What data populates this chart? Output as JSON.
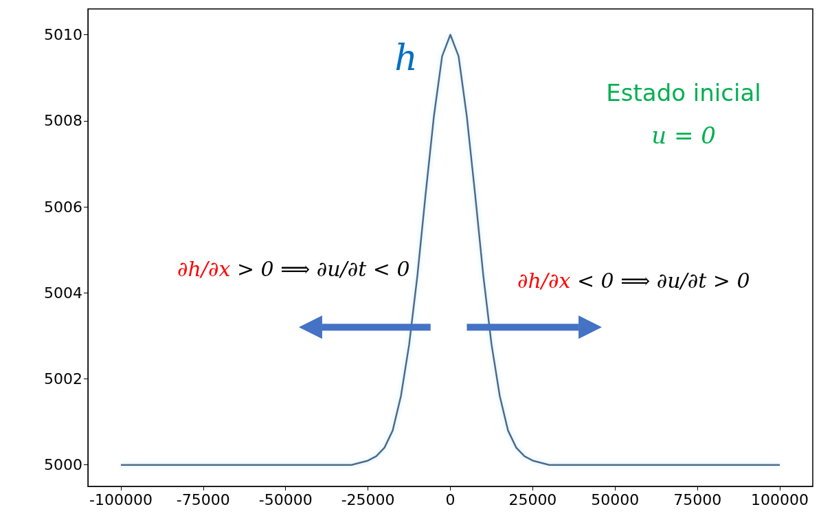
{
  "chart_data": {
    "type": "line",
    "x": [
      -100000,
      -75000,
      -50000,
      -30000,
      -25000,
      -22500,
      -20000,
      -17500,
      -15000,
      -12500,
      -10000,
      -7500,
      -5000,
      -2500,
      0,
      2500,
      5000,
      7500,
      10000,
      12500,
      15000,
      17500,
      20000,
      22500,
      25000,
      30000,
      50000,
      75000,
      100000
    ],
    "series": [
      {
        "color": "#4a6a8c",
        "values": [
          5000,
          5000,
          5000,
          5000,
          5000.1,
          5000.2,
          5000.4,
          5000.8,
          5001.6,
          5002.8,
          5004.4,
          5006.3,
          5008.1,
          5009.5,
          5010,
          5009.5,
          5008.1,
          5006.3,
          5004.4,
          5002.8,
          5001.6,
          5000.8,
          5000.4,
          5000.2,
          5000.1,
          5000,
          5000,
          5000,
          5000
        ]
      }
    ],
    "xlim": [
      -110000,
      110000
    ],
    "xticks": [
      -100000,
      -75000,
      -50000,
      -25000,
      0,
      25000,
      50000,
      75000,
      100000
    ],
    "ylim": [
      4999.5,
      5010.6
    ],
    "yticks": [
      5000,
      5002,
      5004,
      5006,
      5008,
      5010
    ],
    "grid": false,
    "marker": "none",
    "line_style": "solid",
    "annotations": [
      "h",
      "Estado inicial",
      "u = 0",
      "∂h/∂x > 0 ⟹ ∂u/∂t < 0",
      "∂h/∂x < 0 ⟹ ∂u/∂t > 0"
    ]
  }
}
